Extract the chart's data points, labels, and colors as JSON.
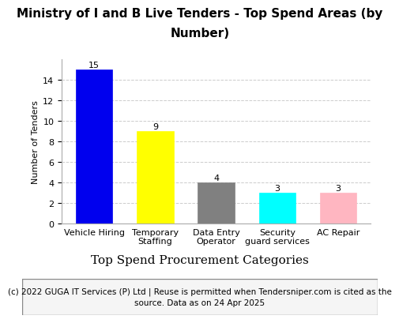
{
  "title": "Ministry of I and B Live Tenders - Top Spend Areas (by\nNumber)",
  "categories": [
    "Vehicle Hiring",
    "Temporary\nStaffing",
    "Data Entry\nOperator",
    "Security\nguard services",
    "AC Repair"
  ],
  "values": [
    15,
    9,
    4,
    3,
    3
  ],
  "bar_colors": [
    "#0000EE",
    "#FFFF00",
    "#808080",
    "#00FFFF",
    "#FFB6C1"
  ],
  "ylabel": "Number of Tenders",
  "xlabel": "Top Spend Procurement Categories",
  "ylim": [
    0,
    16
  ],
  "yticks": [
    0,
    2,
    4,
    6,
    8,
    10,
    12,
    14
  ],
  "grid_color": "#cccccc",
  "footer": "(c) 2022 GUGA IT Services (P) Ltd | Reuse is permitted when Tendersniper.com is cited as the\nsource. Data as on 24 Apr 2025",
  "background_color": "#ffffff",
  "title_fontsize": 11,
  "ylabel_fontsize": 8,
  "xlabel_fontsize": 11,
  "tick_fontsize": 8,
  "bar_label_fontsize": 8,
  "footer_fontsize": 7.5
}
